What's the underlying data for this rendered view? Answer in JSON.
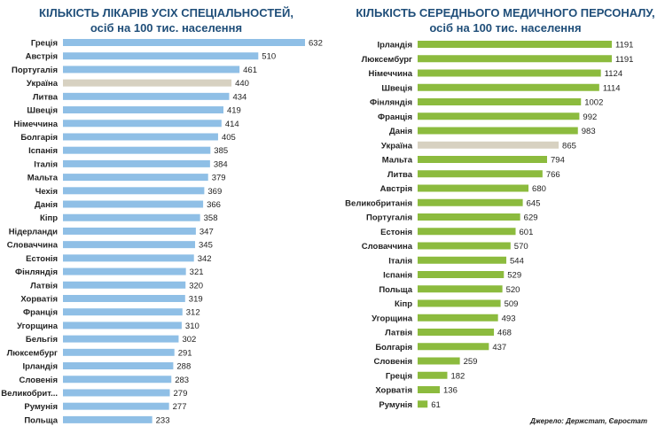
{
  "colors": {
    "left_bar": "#8fbfe6",
    "right_bar": "#8cbb3e",
    "highlight": "#d7d1c1",
    "title": "#1f4e79"
  },
  "titles": {
    "left_line1": "КІЛЬКІСТЬ ЛІКАРІВ УСІХ СПЕЦІАЛЬНОСТЕЙ,",
    "left_line2": "осіб на 100 тис. населення",
    "right_line1": "КІЛЬКІСТЬ СЕРЕДНЬОГО МЕДИЧНОГО ПЕРСОНАЛУ,",
    "right_line2": "осіб на 100 тис. населення"
  },
  "source": "Джерело: Держстат, Євростат",
  "chart_data": [
    {
      "type": "bar",
      "orientation": "horizontal",
      "title": "КІЛЬКІСТЬ ЛІКАРІВ УСІХ СПЕЦІАЛЬНОСТЕЙ, осіб на 100 тис. населення",
      "highlight": "Україна",
      "categories": [
        "Греція",
        "Австрія",
        "Португалія",
        "Україна",
        "Литва",
        "Швеція",
        "Німеччина",
        "Болгарія",
        "Іспанія",
        "Італія",
        "Мальта",
        "Чехія",
        "Данія",
        "Кіпр",
        "Нідерланди",
        "Словаччина",
        "Естонія",
        "Фінляндія",
        "Латвія",
        "Хорватія",
        "Франція",
        "Угорщина",
        "Бельгія",
        "Люксембург",
        "Ірландія",
        "Словенія",
        "Великобрит...",
        "Румунія",
        "Польща"
      ],
      "values": [
        632,
        510,
        461,
        440,
        434,
        419,
        414,
        405,
        385,
        384,
        379,
        369,
        366,
        358,
        347,
        345,
        342,
        321,
        320,
        319,
        312,
        310,
        302,
        291,
        288,
        283,
        279,
        277,
        233
      ]
    },
    {
      "type": "bar",
      "orientation": "horizontal",
      "title": "КІЛЬКІСТЬ СЕРЕДНЬОГО МЕДИЧНОГО ПЕРСОНАЛУ, осіб на 100 тис. населення",
      "highlight": "Україна",
      "categories": [
        "Ірландія",
        "Люксембург",
        "Німеччина",
        "Швеція",
        "Фінляндія",
        "Франція",
        "Данія",
        "Україна",
        "Мальта",
        "Литва",
        "Австрія",
        "Великобританія",
        "Португалія",
        "Естонія",
        "Словаччина",
        "Італія",
        "Іспанія",
        "Польща",
        "Кіпр",
        "Угорщина",
        "Латвія",
        "Болгарія",
        "Словенія",
        "Греція",
        "Хорватія",
        "Румунія"
      ],
      "values": [
        1191,
        1191,
        1124,
        1114,
        1002,
        992,
        983,
        865,
        794,
        766,
        680,
        645,
        629,
        601,
        570,
        544,
        529,
        520,
        509,
        493,
        468,
        437,
        259,
        182,
        136,
        61
      ]
    }
  ]
}
